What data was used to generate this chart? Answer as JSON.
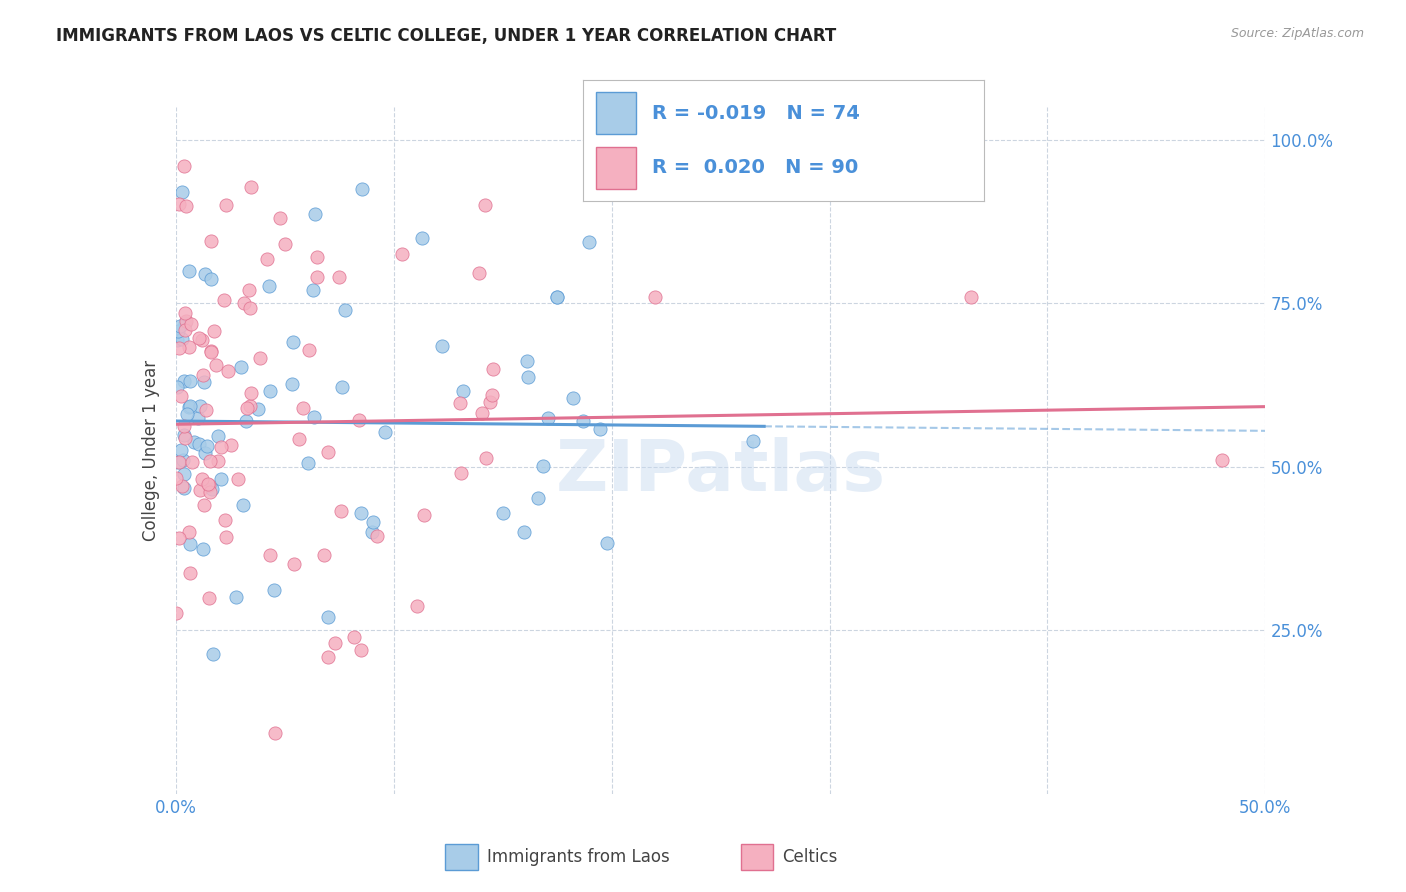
{
  "title": "IMMIGRANTS FROM LAOS VS CELTIC COLLEGE, UNDER 1 YEAR CORRELATION CHART",
  "source": "Source: ZipAtlas.com",
  "ylabel": "College, Under 1 year",
  "legend_label1": "Immigrants from Laos",
  "legend_label2": "Celtics",
  "R1": "-0.019",
  "N1": "74",
  "R2": "0.020",
  "N2": "90",
  "color_blue": "#a8cce8",
  "color_pink": "#f5b0c0",
  "color_blue_line": "#5b9bd5",
  "color_pink_line": "#e07090",
  "color_blue_text": "#4a90d9",
  "watermark": "ZIPatlas",
  "xlim": [
    0.0,
    0.5
  ],
  "ylim": [
    0.0,
    1.05
  ],
  "xticks": [
    0.0,
    0.1,
    0.2,
    0.3,
    0.4,
    0.5
  ],
  "xticklabels": [
    "0.0%",
    "",
    "",
    "",
    "",
    "50.0%"
  ],
  "yticks": [
    0.25,
    0.5,
    0.75,
    1.0
  ],
  "yticklabels": [
    "25.0%",
    "50.0%",
    "75.0%",
    "100.0%"
  ]
}
